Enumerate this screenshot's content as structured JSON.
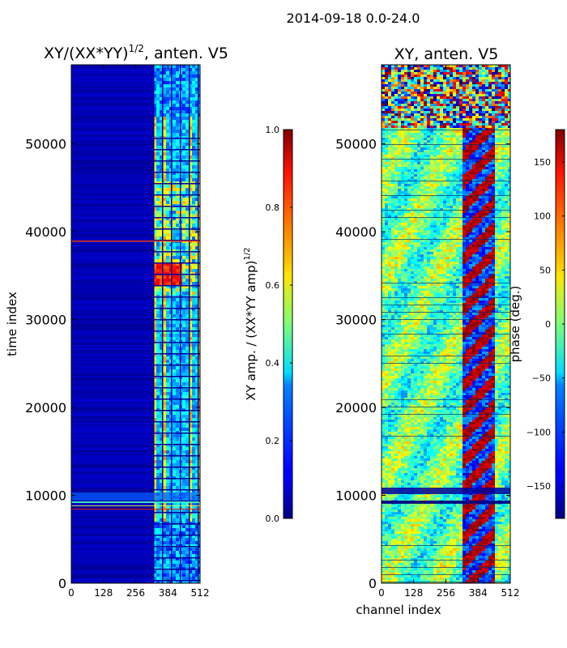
{
  "suptitle": "2014-09-18 0.0-24.0",
  "chart_data": [
    {
      "type": "heatmap",
      "title": "XY/(XX*YY)",
      "title_exp": "1/2",
      "title_suffix": ", anten. V5",
      "xlabel": "",
      "ylabel": "time index",
      "xlim": [
        0,
        512
      ],
      "ylim": [
        0,
        59000
      ],
      "xticks": [
        0,
        128,
        256,
        384,
        512
      ],
      "yticks": [
        0,
        10000,
        20000,
        30000,
        40000,
        50000
      ],
      "colormap": "jet",
      "colorbar": {
        "label": "XY amp. / (XX*YY amp)",
        "label_exp": "1/2",
        "range": [
          0.0,
          1.0
        ],
        "ticks": [
          "0.0",
          "0.2",
          "0.4",
          "0.6",
          "0.8",
          "1.0"
        ],
        "tick_values": [
          0.0,
          0.2,
          0.4,
          0.6,
          0.8,
          1.0
        ]
      }
    },
    {
      "type": "heatmap",
      "title": "XY, anten. V5",
      "xlabel": "channel index",
      "ylabel": "",
      "xlim": [
        0,
        512
      ],
      "ylim": [
        0,
        59000
      ],
      "xticks": [
        0,
        128,
        256,
        384,
        512
      ],
      "yticks": [
        0,
        10000,
        20000,
        30000,
        40000,
        50000
      ],
      "colormap": "jet",
      "colorbar": {
        "label": "phase (deg.)",
        "range": [
          -180,
          180
        ],
        "ticks": [
          "−150",
          "−100",
          "−50",
          "0",
          "50",
          "100",
          "150"
        ],
        "tick_values": [
          -150,
          -100,
          -50,
          0,
          50,
          100,
          150
        ]
      }
    }
  ]
}
